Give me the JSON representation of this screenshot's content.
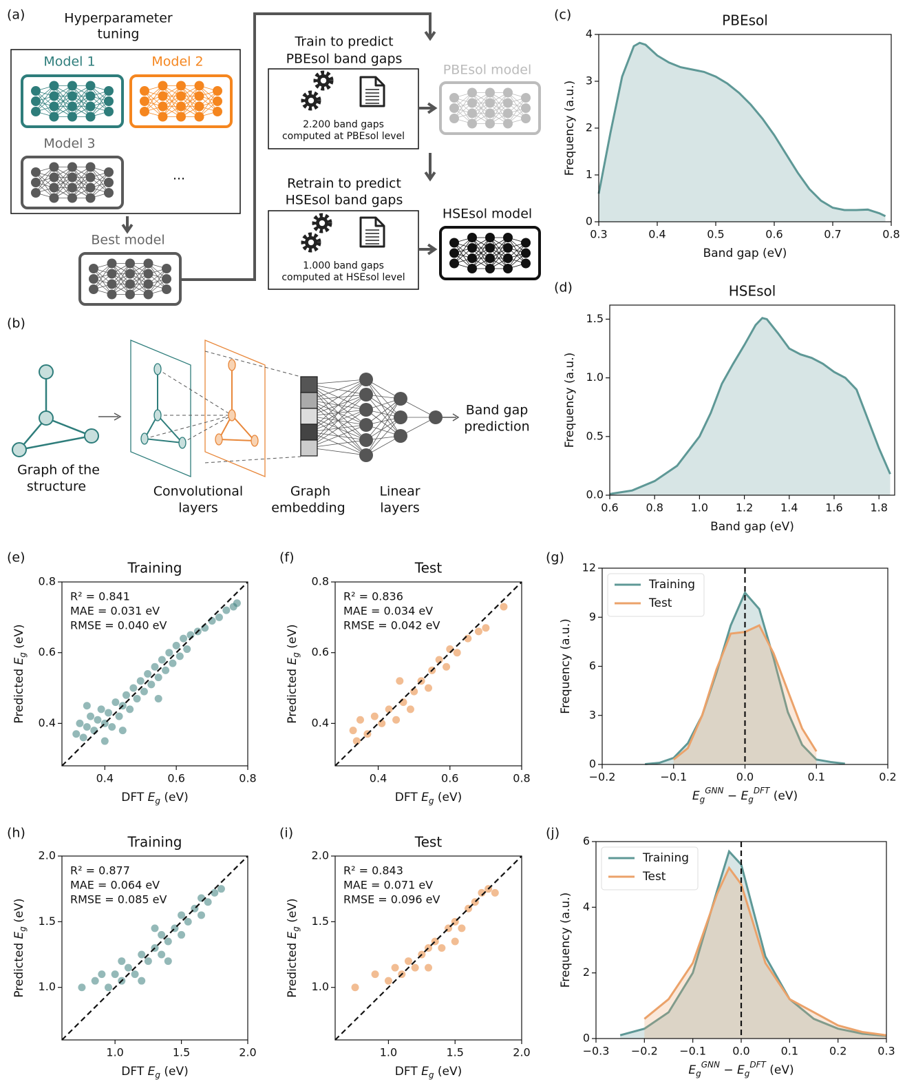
{
  "diagram_a": {
    "panel": "(a)",
    "tuning_title": [
      "Hyperparameter",
      "tuning"
    ],
    "models": [
      "Model 1",
      "Model 2",
      "Model 3"
    ],
    "ellipsis": "...",
    "best_model": "Best model",
    "train_step": [
      "Train to predict",
      "PBEsol band gaps"
    ],
    "train_data": [
      "2.200 band gaps",
      "computed at PBEsol level"
    ],
    "pbesol_model": "PBEsol model",
    "retrain_step": [
      "Retrain to predict",
      "HSEsol band gaps"
    ],
    "retrain_data": [
      "1.000 band gaps",
      "computed at HSEsol level"
    ],
    "hsesol_model": "HSEsol model"
  },
  "diagram_b": {
    "panel": "(b)",
    "graph_label": [
      "Graph of the",
      "structure"
    ],
    "conv_label": [
      "Convolutional",
      "layers"
    ],
    "embedding_label": [
      "Graph",
      "embedding"
    ],
    "linear_label": [
      "Linear",
      "layers"
    ],
    "output_label": [
      "Band gap",
      "prediction"
    ]
  },
  "chart_data": [
    {
      "type": "area",
      "panel": "(c)",
      "title": "PBEsol",
      "xlabel": [
        {
          "text": "Band gap (eV)"
        }
      ],
      "ylabel": [
        {
          "text": "Frequency (a.u.)"
        }
      ],
      "x": [
        0.3,
        0.32,
        0.34,
        0.36,
        0.37,
        0.38,
        0.4,
        0.42,
        0.44,
        0.46,
        0.48,
        0.5,
        0.52,
        0.54,
        0.56,
        0.58,
        0.6,
        0.62,
        0.64,
        0.66,
        0.68,
        0.7,
        0.72,
        0.74,
        0.76,
        0.78,
        0.79
      ],
      "values": [
        0.6,
        1.9,
        3.1,
        3.75,
        3.82,
        3.78,
        3.55,
        3.4,
        3.3,
        3.25,
        3.2,
        3.1,
        2.95,
        2.75,
        2.5,
        2.2,
        1.85,
        1.45,
        1.05,
        0.7,
        0.45,
        0.3,
        0.25,
        0.25,
        0.26,
        0.18,
        0.12
      ],
      "color": "#5e9896",
      "xlim": [
        0.3,
        0.8
      ],
      "ylim": [
        0,
        4
      ],
      "xticks": [
        0.3,
        0.4,
        0.5,
        0.6,
        0.7,
        0.8
      ],
      "yticks": [
        0,
        1,
        2,
        3,
        4
      ]
    },
    {
      "type": "area",
      "panel": "(d)",
      "title": "HSEsol",
      "xlabel": [
        {
          "text": "Band gap (eV)"
        }
      ],
      "ylabel": [
        {
          "text": "Frequency (a.u.)"
        }
      ],
      "x": [
        0.6,
        0.7,
        0.8,
        0.9,
        1.0,
        1.05,
        1.1,
        1.15,
        1.2,
        1.25,
        1.28,
        1.3,
        1.35,
        1.4,
        1.45,
        1.5,
        1.55,
        1.6,
        1.65,
        1.7,
        1.75,
        1.8,
        1.85
      ],
      "values": [
        0.01,
        0.04,
        0.12,
        0.25,
        0.5,
        0.7,
        0.95,
        1.12,
        1.28,
        1.45,
        1.51,
        1.5,
        1.38,
        1.25,
        1.2,
        1.17,
        1.12,
        1.05,
        1.0,
        0.9,
        0.65,
        0.4,
        0.18
      ],
      "color": "#5e9896",
      "xlim": [
        0.6,
        1.87
      ],
      "ylim": [
        0,
        1.62
      ],
      "xticks": [
        0.6,
        0.8,
        {
          "value": 1,
          "label": "1.0"
        },
        1.2,
        1.4,
        1.6,
        1.8
      ],
      "yticks": [
        {
          "value": 0,
          "label": "0.0"
        },
        0.5,
        {
          "value": 1,
          "label": "1.0"
        },
        1.5
      ]
    },
    {
      "type": "scatter",
      "panel": "(e)",
      "title": "Training",
      "xlabel": [
        {
          "text": "DFT "
        },
        {
          "text": "E",
          "style": "italic"
        },
        {
          "text": "g",
          "style": "sub"
        },
        {
          "text": " (eV)"
        }
      ],
      "ylabel": [
        {
          "text": "Predicted "
        },
        {
          "text": "E",
          "style": "italic"
        },
        {
          "text": "g",
          "style": "sub"
        },
        {
          "text": " (eV)"
        }
      ],
      "annotations": [
        "R² = 0.841",
        "MAE = 0.031 eV",
        "RMSE = 0.040 eV"
      ],
      "diagonal": true,
      "color": "#3d7f7d",
      "x": [
        0.32,
        0.33,
        0.34,
        0.35,
        0.36,
        0.37,
        0.38,
        0.39,
        0.4,
        0.41,
        0.42,
        0.43,
        0.44,
        0.45,
        0.46,
        0.47,
        0.48,
        0.49,
        0.5,
        0.51,
        0.52,
        0.53,
        0.54,
        0.55,
        0.56,
        0.57,
        0.58,
        0.59,
        0.6,
        0.61,
        0.62,
        0.63,
        0.64,
        0.66,
        0.68,
        0.7,
        0.72,
        0.74,
        0.76,
        0.77,
        0.35,
        0.45,
        0.55,
        0.4
      ],
      "values": [
        0.37,
        0.4,
        0.36,
        0.39,
        0.42,
        0.38,
        0.41,
        0.44,
        0.4,
        0.43,
        0.39,
        0.46,
        0.42,
        0.45,
        0.48,
        0.44,
        0.5,
        0.47,
        0.52,
        0.49,
        0.54,
        0.51,
        0.56,
        0.53,
        0.58,
        0.55,
        0.6,
        0.57,
        0.62,
        0.59,
        0.64,
        0.61,
        0.65,
        0.66,
        0.67,
        0.69,
        0.7,
        0.72,
        0.73,
        0.74,
        0.45,
        0.38,
        0.47,
        0.35
      ],
      "xlim": [
        0.28,
        0.8
      ],
      "ylim": [
        0.28,
        0.8
      ],
      "xticks": [
        0.4,
        0.6,
        0.8
      ],
      "yticks": [
        0.4,
        0.6,
        0.8
      ]
    },
    {
      "type": "scatter",
      "panel": "(f)",
      "title": "Test",
      "xlabel": [
        {
          "text": "DFT "
        },
        {
          "text": "E",
          "style": "italic"
        },
        {
          "text": "g",
          "style": "sub"
        },
        {
          "text": " (eV)"
        }
      ],
      "ylabel": [
        {
          "text": "Predicted "
        },
        {
          "text": "E",
          "style": "italic"
        },
        {
          "text": "g",
          "style": "sub"
        },
        {
          "text": " (eV)"
        }
      ],
      "annotations": [
        "R² = 0.836",
        "MAE = 0.034 eV",
        "RMSE = 0.042 eV"
      ],
      "diagonal": true,
      "color": "#e8873a",
      "x": [
        0.33,
        0.35,
        0.37,
        0.39,
        0.41,
        0.43,
        0.45,
        0.47,
        0.49,
        0.5,
        0.52,
        0.54,
        0.55,
        0.57,
        0.59,
        0.6,
        0.62,
        0.65,
        0.68,
        0.7,
        0.75,
        0.34,
        0.46
      ],
      "values": [
        0.38,
        0.41,
        0.37,
        0.42,
        0.4,
        0.44,
        0.41,
        0.46,
        0.44,
        0.49,
        0.52,
        0.5,
        0.55,
        0.58,
        0.56,
        0.61,
        0.6,
        0.64,
        0.66,
        0.67,
        0.73,
        0.35,
        0.52
      ],
      "xlim": [
        0.28,
        0.8
      ],
      "ylim": [
        0.28,
        0.8
      ],
      "xticks": [
        0.4,
        0.6,
        0.8
      ],
      "yticks": [
        0.4,
        0.6,
        0.8
      ]
    },
    {
      "type": "area",
      "panel": "(g)",
      "xlabel": [
        {
          "text": "E",
          "style": "italic"
        },
        {
          "text": "g",
          "style": "sub"
        },
        {
          "text": "GNN",
          "style": "sup"
        },
        {
          "text": " − "
        },
        {
          "text": "E",
          "style": "italic"
        },
        {
          "text": "g",
          "style": "sub"
        },
        {
          "text": "DFT",
          "style": "sup"
        },
        {
          "text": " (eV)"
        }
      ],
      "ylabel": [
        {
          "text": "Frequency (a.u.)"
        }
      ],
      "legend": "upper left",
      "zero_line": true,
      "x": [
        -0.14,
        -0.12,
        -0.1,
        -0.08,
        -0.06,
        -0.04,
        -0.02,
        0,
        0.02,
        0.04,
        0.06,
        0.08,
        0.1,
        0.12,
        0.14
      ],
      "series": [
        {
          "name": "Training",
          "color": "#5e9896",
          "values": [
            0.02,
            0.1,
            0.4,
            1.3,
            3.0,
            5.6,
            8.5,
            10.5,
            9.5,
            6.5,
            3.2,
            1.2,
            0.3,
            0.15,
            0.05
          ]
        },
        {
          "name": "Test",
          "color": "#eba26a",
          "values": [
            null,
            null,
            0.3,
            1.0,
            3.0,
            5.8,
            8.0,
            8.1,
            8.5,
            6.8,
            4.5,
            2.2,
            0.8,
            null,
            null
          ]
        }
      ],
      "xlim": [
        -0.2,
        0.2
      ],
      "ylim": [
        0,
        12
      ],
      "xticks": [
        {
          "value": -0.2,
          "label": "−0.2"
        },
        {
          "value": -0.1,
          "label": "−0.1"
        },
        {
          "value": 0,
          "label": "0.0"
        },
        0.1,
        0.2
      ],
      "yticks": [
        0,
        3,
        6,
        9,
        12
      ]
    },
    {
      "type": "scatter",
      "panel": "(h)",
      "title": "Training",
      "xlabel": [
        {
          "text": "DFT "
        },
        {
          "text": "E",
          "style": "italic"
        },
        {
          "text": "g",
          "style": "sub"
        },
        {
          "text": " (eV)"
        }
      ],
      "ylabel": [
        {
          "text": "Predicted "
        },
        {
          "text": "E",
          "style": "italic"
        },
        {
          "text": "g",
          "style": "sub"
        },
        {
          "text": " (eV)"
        }
      ],
      "annotations": [
        "R² = 0.877",
        "MAE = 0.064 eV",
        "RMSE = 0.085 eV"
      ],
      "diagonal": true,
      "color": "#3d7f7d",
      "x": [
        0.75,
        0.85,
        0.95,
        1.0,
        1.05,
        1.1,
        1.15,
        1.2,
        1.25,
        1.3,
        1.35,
        1.35,
        1.4,
        1.45,
        1.5,
        1.5,
        1.55,
        1.6,
        1.65,
        1.65,
        1.7,
        1.75,
        1.8,
        1.05,
        1.2,
        1.4,
        1.3,
        0.9
      ],
      "values": [
        1.0,
        1.05,
        1.0,
        1.1,
        1.05,
        1.15,
        1.1,
        1.25,
        1.2,
        1.3,
        1.25,
        1.4,
        1.35,
        1.45,
        1.4,
        1.55,
        1.5,
        1.6,
        1.55,
        1.68,
        1.65,
        1.72,
        1.75,
        1.2,
        1.05,
        1.2,
        1.45,
        1.1
      ],
      "xlim": [
        0.6,
        2.0
      ],
      "ylim": [
        0.6,
        2.0
      ],
      "xticks": [
        {
          "value": 1,
          "label": "1.0"
        },
        1.5,
        {
          "value": 2,
          "label": "2.0"
        }
      ],
      "yticks": [
        {
          "value": 1,
          "label": "1.0"
        },
        1.5,
        {
          "value": 2,
          "label": "2.0"
        }
      ]
    },
    {
      "type": "scatter",
      "panel": "(i)",
      "title": "Test",
      "xlabel": [
        {
          "text": "DFT "
        },
        {
          "text": "E",
          "style": "italic"
        },
        {
          "text": "g",
          "style": "sub"
        },
        {
          "text": " (eV)"
        }
      ],
      "ylabel": [
        {
          "text": "Predicted "
        },
        {
          "text": "E",
          "style": "italic"
        },
        {
          "text": "g",
          "style": "sub"
        },
        {
          "text": " (eV)"
        }
      ],
      "annotations": [
        "R² = 0.843",
        "MAE = 0.071 eV",
        "RMSE = 0.096 eV"
      ],
      "diagonal": true,
      "color": "#e8873a",
      "x": [
        0.75,
        0.9,
        1.0,
        1.05,
        1.1,
        1.15,
        1.2,
        1.25,
        1.3,
        1.35,
        1.4,
        1.45,
        1.5,
        1.55,
        1.6,
        1.65,
        1.7,
        1.75,
        1.8,
        1.3,
        1.5
      ],
      "values": [
        1.0,
        1.1,
        1.05,
        1.15,
        1.1,
        1.2,
        1.15,
        1.25,
        1.3,
        1.35,
        1.3,
        1.45,
        1.5,
        1.45,
        1.6,
        1.65,
        1.72,
        1.75,
        1.72,
        1.15,
        1.35
      ],
      "xlim": [
        0.6,
        2.0
      ],
      "ylim": [
        0.6,
        2.0
      ],
      "xticks": [
        {
          "value": 1,
          "label": "1.0"
        },
        1.5,
        {
          "value": 2,
          "label": "2.0"
        }
      ],
      "yticks": [
        {
          "value": 1,
          "label": "1.0"
        },
        1.5,
        {
          "value": 2,
          "label": "2.0"
        }
      ]
    },
    {
      "type": "area",
      "panel": "(j)",
      "xlabel": [
        {
          "text": "E",
          "style": "italic"
        },
        {
          "text": "g",
          "style": "sub"
        },
        {
          "text": "GNN",
          "style": "sup"
        },
        {
          "text": " − "
        },
        {
          "text": "E",
          "style": "italic"
        },
        {
          "text": "g",
          "style": "sub"
        },
        {
          "text": "DFT",
          "style": "sup"
        },
        {
          "text": " (eV)"
        }
      ],
      "ylabel": [
        {
          "text": "Frequency (a.u.)"
        }
      ],
      "legend": "upper left",
      "zero_line": true,
      "x": [
        -0.25,
        -0.2,
        -0.15,
        -0.1,
        -0.05,
        -0.025,
        0,
        0.05,
        0.1,
        0.15,
        0.2,
        0.25,
        0.3
      ],
      "series": [
        {
          "name": "Training",
          "color": "#5e9896",
          "values": [
            0.1,
            0.3,
            0.8,
            2.0,
            4.5,
            5.7,
            5.3,
            2.5,
            1.2,
            0.6,
            0.3,
            0.15,
            0.08
          ]
        },
        {
          "name": "Test",
          "color": "#eba26a",
          "values": [
            null,
            0.6,
            1.2,
            2.3,
            4.4,
            5.2,
            4.7,
            2.3,
            1.2,
            0.8,
            0.4,
            0.2,
            0.1
          ]
        }
      ],
      "xlim": [
        -0.3,
        0.3
      ],
      "ylim": [
        0,
        6
      ],
      "xticks": [
        {
          "value": -0.3,
          "label": "−0.3"
        },
        {
          "value": -0.2,
          "label": "−0.2"
        },
        {
          "value": -0.1,
          "label": "−0.1"
        },
        {
          "value": 0,
          "label": "0.0"
        },
        0.1,
        0.2,
        0.3
      ],
      "yticks": [
        0,
        2,
        4,
        6
      ]
    }
  ]
}
